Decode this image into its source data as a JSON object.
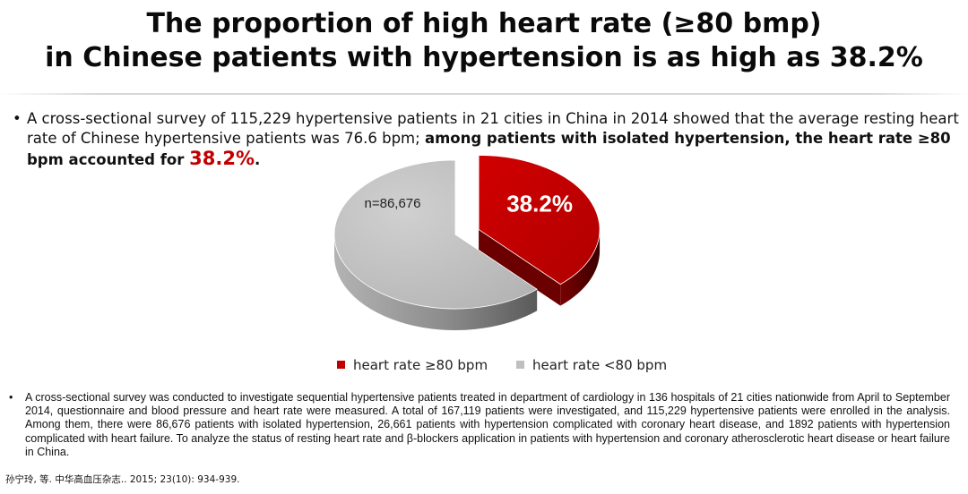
{
  "title": {
    "line1": "The proportion of high heart rate (≥80 bmp)",
    "line2": "in Chinese patients with hypertension is as high as 38.2%"
  },
  "bullet1": {
    "bullet": "•",
    "text_normal": "A cross-sectional survey of 115,229 hypertensive patients in 21 cities in China in 2014 showed that the average resting heart rate of Chinese hypertensive patients was 76.6 bpm; ",
    "text_bold": "among patients with isolated hypertension, the heart rate ≥80 bpm accounted for ",
    "highlight": "38.2%",
    "end": "."
  },
  "chart_data": {
    "type": "pie",
    "title": "",
    "slices": [
      {
        "label": "heart rate ≥80 bpm",
        "value": 38.2,
        "data_label": "38.2%",
        "color": "#c00000",
        "exploded": true
      },
      {
        "label": "heart rate <80 bpm",
        "value": 61.8,
        "data_label": "n=86,676",
        "color": "#bfbfbf",
        "exploded": false
      }
    ],
    "legend_position": "bottom",
    "style": "3d"
  },
  "note": {
    "bullet": "•",
    "text": "A cross-sectional survey was conducted to investigate sequential hypertensive patients treated in department of cardiology in 136 hospitals of 21 cities nationwide from April to September 2014, questionnaire and blood pressure and heart rate were measured. A total of 167,119 patients were investigated, and 115,229 hypertensive patients were enrolled in the analysis. Among them, there were 86,676 patients with isolated hypertension, 26,661 patients with hypertension complicated with coronary heart disease, and 1892 patients with hypertension complicated with heart failure. To analyze the status of resting heart rate and β-blockers application in patients with hypertension and coronary atherosclerotic heart disease or heart failure in China."
  },
  "reference": "孙宁玲, 等. 中华高血压杂志.. 2015; 23(10): 934-939."
}
